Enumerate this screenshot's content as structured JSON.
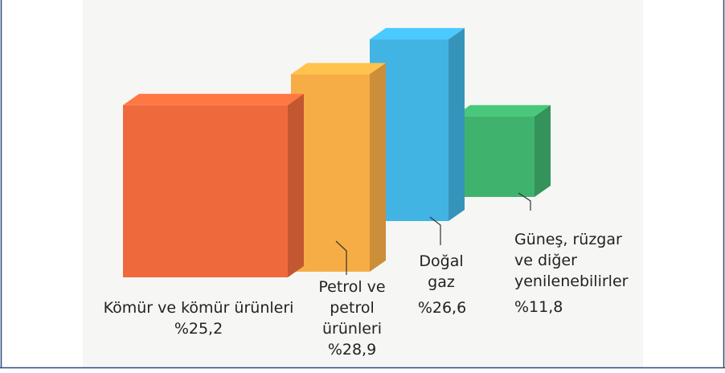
{
  "chart_data": {
    "type": "block3d",
    "categories": [
      "Kömür ve kömür ürünleri",
      "Petrol ve petrol ürünleri",
      "Doğal gaz",
      "Güneş, rüzgar ve diğer yenilenebilirler"
    ],
    "values": [
      25.2,
      28.9,
      26.6,
      11.8
    ],
    "value_labels": [
      "%25,2",
      "%28,9",
      "%26,6",
      "%11,8"
    ],
    "colors": [
      "#ee6a3c",
      "#f7ad45",
      "#42b4e4",
      "#3fb36e"
    ]
  }
}
